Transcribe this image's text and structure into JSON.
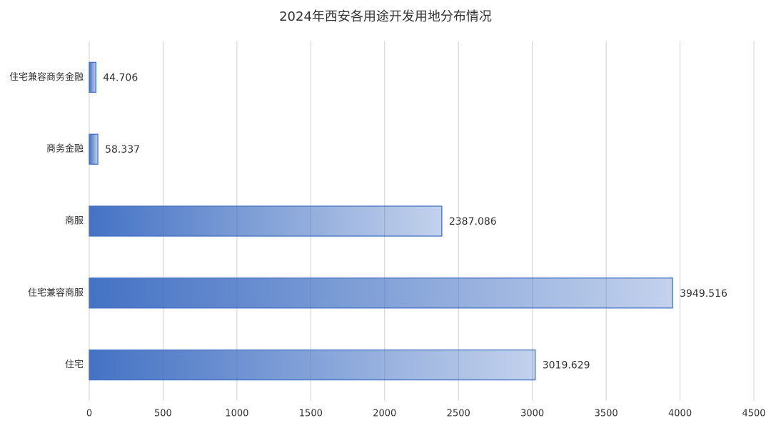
{
  "chart_data": {
    "type": "hbar",
    "title": "2024年西安各用途开发用地分布情况",
    "categories": [
      "住宅兼容商务金融",
      "商务金融",
      "商服",
      "住宅兼容商服",
      "住宅"
    ],
    "values": [
      44.706,
      58.337,
      2387.086,
      3949.516,
      3019.629
    ],
    "color": "#4472c4",
    "xlim": [
      0,
      4500
    ],
    "xticks": [
      0,
      500,
      1000,
      1500,
      2000,
      2500,
      3000,
      3500,
      4000,
      4500
    ],
    "grid": true
  }
}
